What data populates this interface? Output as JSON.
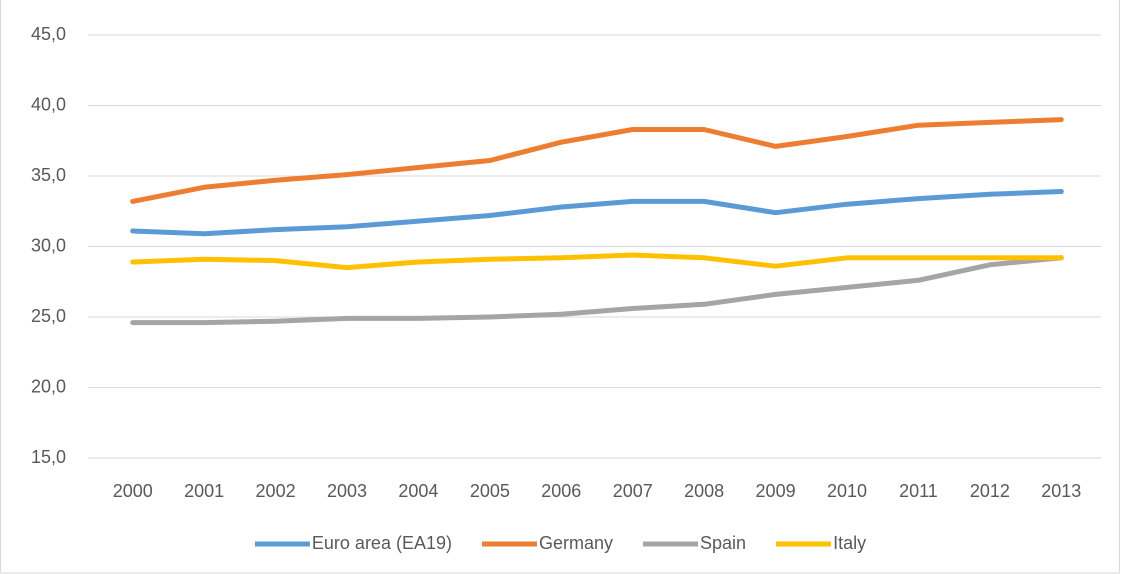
{
  "chart_data": {
    "type": "line",
    "categories": [
      "2000",
      "2001",
      "2002",
      "2003",
      "2004",
      "2005",
      "2006",
      "2007",
      "2008",
      "2009",
      "2010",
      "2011",
      "2012",
      "2013"
    ],
    "series": [
      {
        "name": "Euro area (EA19)",
        "color": "#5b9bd5",
        "values": [
          31.1,
          30.9,
          31.2,
          31.4,
          31.8,
          32.2,
          32.8,
          33.2,
          33.2,
          32.4,
          33.0,
          33.4,
          33.7,
          33.9
        ]
      },
      {
        "name": "Germany",
        "color": "#ed7d31",
        "values": [
          33.2,
          34.2,
          34.7,
          35.1,
          35.6,
          36.1,
          37.4,
          38.3,
          38.3,
          37.1,
          37.8,
          38.6,
          38.8,
          39.0
        ]
      },
      {
        "name": "Spain",
        "color": "#a5a5a5",
        "values": [
          24.6,
          24.6,
          24.7,
          24.9,
          24.9,
          25.0,
          25.2,
          25.6,
          25.9,
          26.6,
          27.1,
          27.6,
          28.7,
          29.2
        ]
      },
      {
        "name": "Italy",
        "color": "#ffc000",
        "values": [
          28.9,
          29.1,
          29.0,
          28.5,
          28.9,
          29.1,
          29.2,
          29.4,
          29.2,
          28.6,
          29.2,
          29.2,
          29.2,
          29.2
        ]
      }
    ],
    "ylim": [
      15,
      45
    ],
    "yticks": [
      {
        "value": 15,
        "label": "15,0"
      },
      {
        "value": 20,
        "label": "20,0"
      },
      {
        "value": 25,
        "label": "25,0"
      },
      {
        "value": 30,
        "label": "30,0"
      },
      {
        "value": 35,
        "label": "35,0"
      },
      {
        "value": 40,
        "label": "40,0"
      },
      {
        "value": 45,
        "label": "45,0"
      }
    ],
    "grid": true,
    "legend": "bottom"
  }
}
